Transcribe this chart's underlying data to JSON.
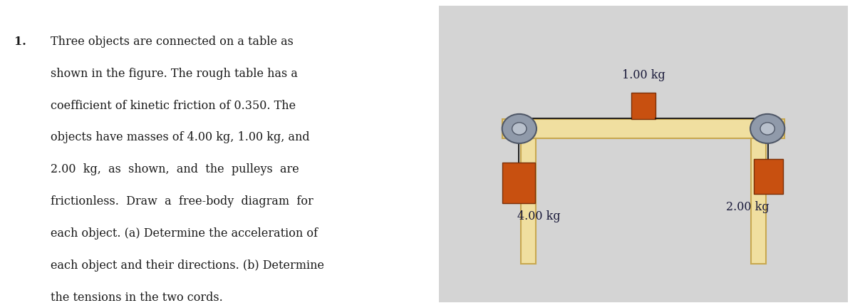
{
  "bg_color": "#ffffff",
  "diagram_bg": "#d4d4d4",
  "table_color": "#f0dfa0",
  "table_edge_color": "#c8a850",
  "block_color": "#c85010",
  "block_edge_color": "#7a3008",
  "pulley_outer": "#909aaa",
  "pulley_inner": "#b8c0cc",
  "pulley_edge": "#505868",
  "rope_color": "#111111",
  "text_color": "#1a1a1a",
  "label_color": "#1a1a3a",
  "lines": [
    "Three objects are connected on a table as",
    "shown in the figure. The rough table has a",
    "coefficient of kinetic friction of 0.350. The",
    "objects have masses of 4.00 kg, 1.00 kg, and",
    "2.00  kg,  as  shown,  and  the  pulleys  are",
    "frictionless.  Draw  a  free-body  diagram  for",
    "each object. (a) Determine the acceleration of",
    "each object and their directions. (b) Determine",
    "the tensions in the two cords."
  ]
}
